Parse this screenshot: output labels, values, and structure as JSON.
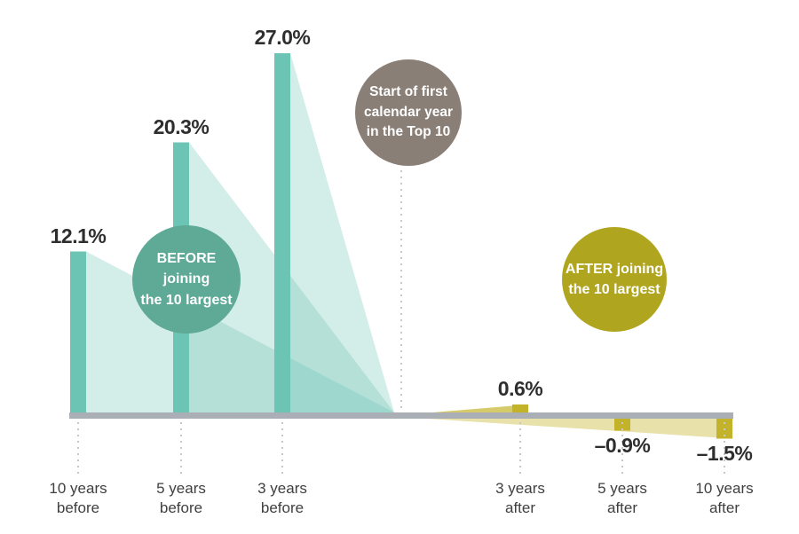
{
  "chart_data": {
    "type": "bar",
    "unit": "%",
    "categories": [
      "10 years before",
      "5 years before",
      "3 years before",
      "3 years after",
      "5 years after",
      "10 years after"
    ],
    "category_lines": [
      [
        "10 years",
        "before"
      ],
      [
        "5 years",
        "before"
      ],
      [
        "3 years",
        "before"
      ],
      [
        "3 years",
        "after"
      ],
      [
        "5 years",
        "after"
      ],
      [
        "10 years",
        "after"
      ]
    ],
    "values": [
      12.1,
      20.3,
      27.0,
      0.6,
      -0.9,
      -1.5
    ],
    "value_labels": [
      "12.1%",
      "20.3%",
      "27.0%",
      "0.6%",
      "–0.9%",
      "–1.5%"
    ],
    "groups": [
      "before",
      "before",
      "before",
      "after",
      "after",
      "after"
    ],
    "grid": false,
    "legend_position": "none",
    "ylim": [
      -2,
      28
    ],
    "colors": {
      "before_bar": "#6cc5b4",
      "before_fan": "#6cc5b4",
      "after_bar": "#c3b32a",
      "after_fan": "#c5b52b",
      "baseline": "#a9afb5",
      "dotted_line": "#c5c9cd",
      "value_text": "#2e2e2e",
      "category_text": "#3f3f3f"
    }
  },
  "bubbles": {
    "before": {
      "lines": [
        "BEFORE joining",
        "the 10 largest"
      ],
      "color": "#5fa997",
      "text_color": "#ffffff"
    },
    "start": {
      "lines": [
        "Start of first",
        "calendar year",
        "in the Top 10"
      ],
      "color": "#8a7f77",
      "text_color": "#ffffff"
    },
    "after": {
      "lines": [
        "AFTER joining",
        "the 10 largest"
      ],
      "color": "#b0a51e",
      "text_color": "#ffffff"
    }
  }
}
